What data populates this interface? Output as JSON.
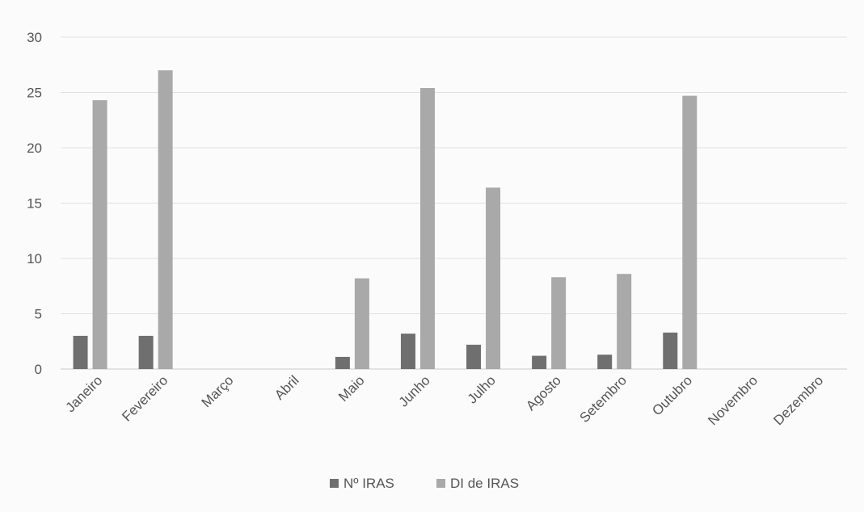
{
  "chart_data": {
    "type": "bar",
    "categories": [
      "Janeiro",
      "Fevereiro",
      "Março",
      "Abril",
      "Maio",
      "Junho",
      "Julho",
      "Agosto",
      "Setembro",
      "Outubro",
      "Novembro",
      "Dezembro"
    ],
    "series": [
      {
        "name": "Nº IRAS",
        "color": "#6f6f6f",
        "values": [
          3,
          3,
          0,
          0,
          1.1,
          3.2,
          2.2,
          1.2,
          1.3,
          3.3,
          0,
          0
        ]
      },
      {
        "name": "DI de IRAS",
        "color": "#a9a9a9",
        "values": [
          24.3,
          27,
          0,
          0,
          8.2,
          25.4,
          16.4,
          8.3,
          8.6,
          24.7,
          0,
          0
        ]
      }
    ],
    "y_ticks": [
      "0",
      "5",
      "10",
      "15",
      "20",
      "25",
      "30"
    ],
    "ylim": [
      0,
      30
    ],
    "grid": true,
    "legend_position": "bottom",
    "title": "",
    "xlabel": "",
    "ylabel": ""
  }
}
